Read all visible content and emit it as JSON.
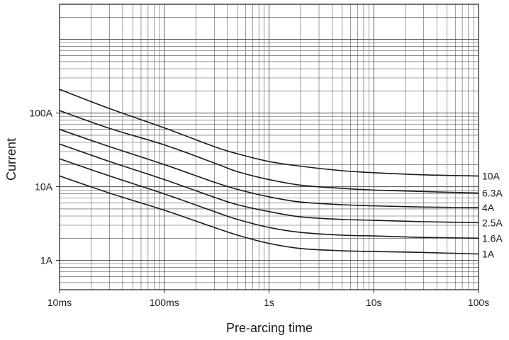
{
  "chart_data": {
    "type": "line",
    "title": "",
    "xlabel": "Pre-arcing time",
    "ylabel": "Current",
    "x_scale": "log",
    "y_scale": "log",
    "x_unit": "s",
    "y_unit": "A",
    "xlim": [
      0.01,
      100
    ],
    "ylim": [
      0.4,
      3000
    ],
    "grid": true,
    "x_ticks": [
      {
        "value": 0.01,
        "label": "10ms"
      },
      {
        "value": 0.1,
        "label": "100ms"
      },
      {
        "value": 1,
        "label": "1s"
      },
      {
        "value": 10,
        "label": "10s"
      },
      {
        "value": 100,
        "label": "100s"
      }
    ],
    "y_ticks": [
      {
        "value": 1,
        "label": "1A"
      },
      {
        "value": 10,
        "label": "10A"
      },
      {
        "value": 100,
        "label": "100A"
      }
    ],
    "series": [
      {
        "name": "10A",
        "points": [
          [
            0.01,
            210
          ],
          [
            0.03,
            115
          ],
          [
            0.1,
            63
          ],
          [
            0.3,
            35
          ],
          [
            0.5,
            28
          ],
          [
            1,
            22
          ],
          [
            2,
            19
          ],
          [
            5,
            16.5
          ],
          [
            10,
            15.5
          ],
          [
            30,
            14.5
          ],
          [
            100,
            14
          ]
        ]
      },
      {
        "name": "6.3A",
        "points": [
          [
            0.01,
            108
          ],
          [
            0.03,
            62
          ],
          [
            0.1,
            37
          ],
          [
            0.3,
            21
          ],
          [
            0.5,
            16
          ],
          [
            1,
            12.5
          ],
          [
            2,
            10.5
          ],
          [
            5,
            9.5
          ],
          [
            10,
            9
          ],
          [
            30,
            8.6
          ],
          [
            100,
            8.2
          ]
        ]
      },
      {
        "name": "4A",
        "points": [
          [
            0.01,
            60
          ],
          [
            0.03,
            35
          ],
          [
            0.1,
            20
          ],
          [
            0.3,
            11.5
          ],
          [
            0.5,
            9.2
          ],
          [
            1,
            7.3
          ],
          [
            2,
            6.2
          ],
          [
            5,
            5.7
          ],
          [
            10,
            5.5
          ],
          [
            30,
            5.3
          ],
          [
            100,
            5.2
          ]
        ]
      },
      {
        "name": "2.5A",
        "points": [
          [
            0.01,
            38
          ],
          [
            0.03,
            22
          ],
          [
            0.1,
            12.5
          ],
          [
            0.3,
            7.2
          ],
          [
            0.5,
            5.7
          ],
          [
            1,
            4.6
          ],
          [
            2,
            3.9
          ],
          [
            5,
            3.6
          ],
          [
            10,
            3.5
          ],
          [
            30,
            3.35
          ],
          [
            100,
            3.25
          ]
        ]
      },
      {
        "name": "1.6A",
        "points": [
          [
            0.01,
            24
          ],
          [
            0.03,
            14
          ],
          [
            0.1,
            8
          ],
          [
            0.3,
            4.6
          ],
          [
            0.5,
            3.6
          ],
          [
            1,
            2.8
          ],
          [
            2,
            2.4
          ],
          [
            5,
            2.2
          ],
          [
            10,
            2.15
          ],
          [
            30,
            2.05
          ],
          [
            100,
            2.0
          ]
        ]
      },
      {
        "name": "1A",
        "points": [
          [
            0.01,
            14
          ],
          [
            0.03,
            8.2
          ],
          [
            0.1,
            4.8
          ],
          [
            0.3,
            2.8
          ],
          [
            0.5,
            2.2
          ],
          [
            1,
            1.7
          ],
          [
            2,
            1.45
          ],
          [
            5,
            1.35
          ],
          [
            10,
            1.32
          ],
          [
            30,
            1.28
          ],
          [
            100,
            1.22
          ]
        ]
      }
    ]
  }
}
